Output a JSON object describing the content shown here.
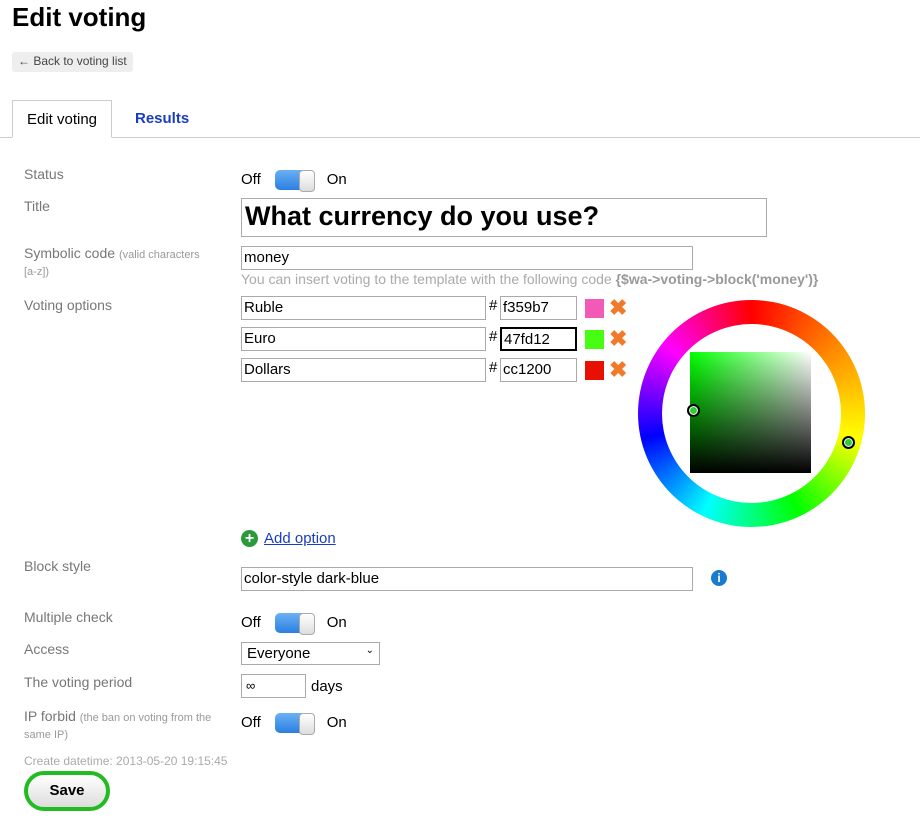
{
  "page": {
    "title": "Edit voting",
    "back_label": "← Back to voting list"
  },
  "tabs": [
    {
      "label": "Edit voting",
      "active": true
    },
    {
      "label": "Results",
      "active": false
    }
  ],
  "form": {
    "status": {
      "label": "Status",
      "off": "Off",
      "on": "On",
      "value": "on"
    },
    "title": {
      "label": "Title",
      "value": "What currency do you use?"
    },
    "code": {
      "label": "Symbolic code",
      "note": "(valid characters [a-z])",
      "value": "money",
      "hint": "You can insert voting to the template with the following code",
      "hint_code": "{$wa->voting->block('money')}"
    },
    "options": {
      "label": "Voting options",
      "hash": "#",
      "items": [
        {
          "name": "Ruble",
          "color": "f359b7",
          "swatch": "#f359b7"
        },
        {
          "name": "Euro",
          "color": "47fd12",
          "swatch": "#47fd12"
        },
        {
          "name": "Dollars",
          "color": "cc1200",
          "swatch": "#cc1200"
        }
      ],
      "add_label": "Add option"
    },
    "block_style": {
      "label": "Block style",
      "value": "color-style dark-blue"
    },
    "multiple": {
      "label": "Multiple check",
      "off": "Off",
      "on": "On",
      "value": "on"
    },
    "access": {
      "label": "Access",
      "value": "Everyone"
    },
    "period": {
      "label": "The voting period",
      "value": "∞",
      "unit": "days"
    },
    "ip": {
      "label": "IP forbid",
      "note": "(the ban on voting from the same IP)",
      "off": "Off",
      "on": "On",
      "value": "on"
    },
    "created": "Create datetime: 2013-05-20 19:15:45",
    "save_label": "Save"
  },
  "colors": {
    "accent": "#2b7fe0",
    "link": "#1a3dbd",
    "save_outline": "#22bb22"
  }
}
